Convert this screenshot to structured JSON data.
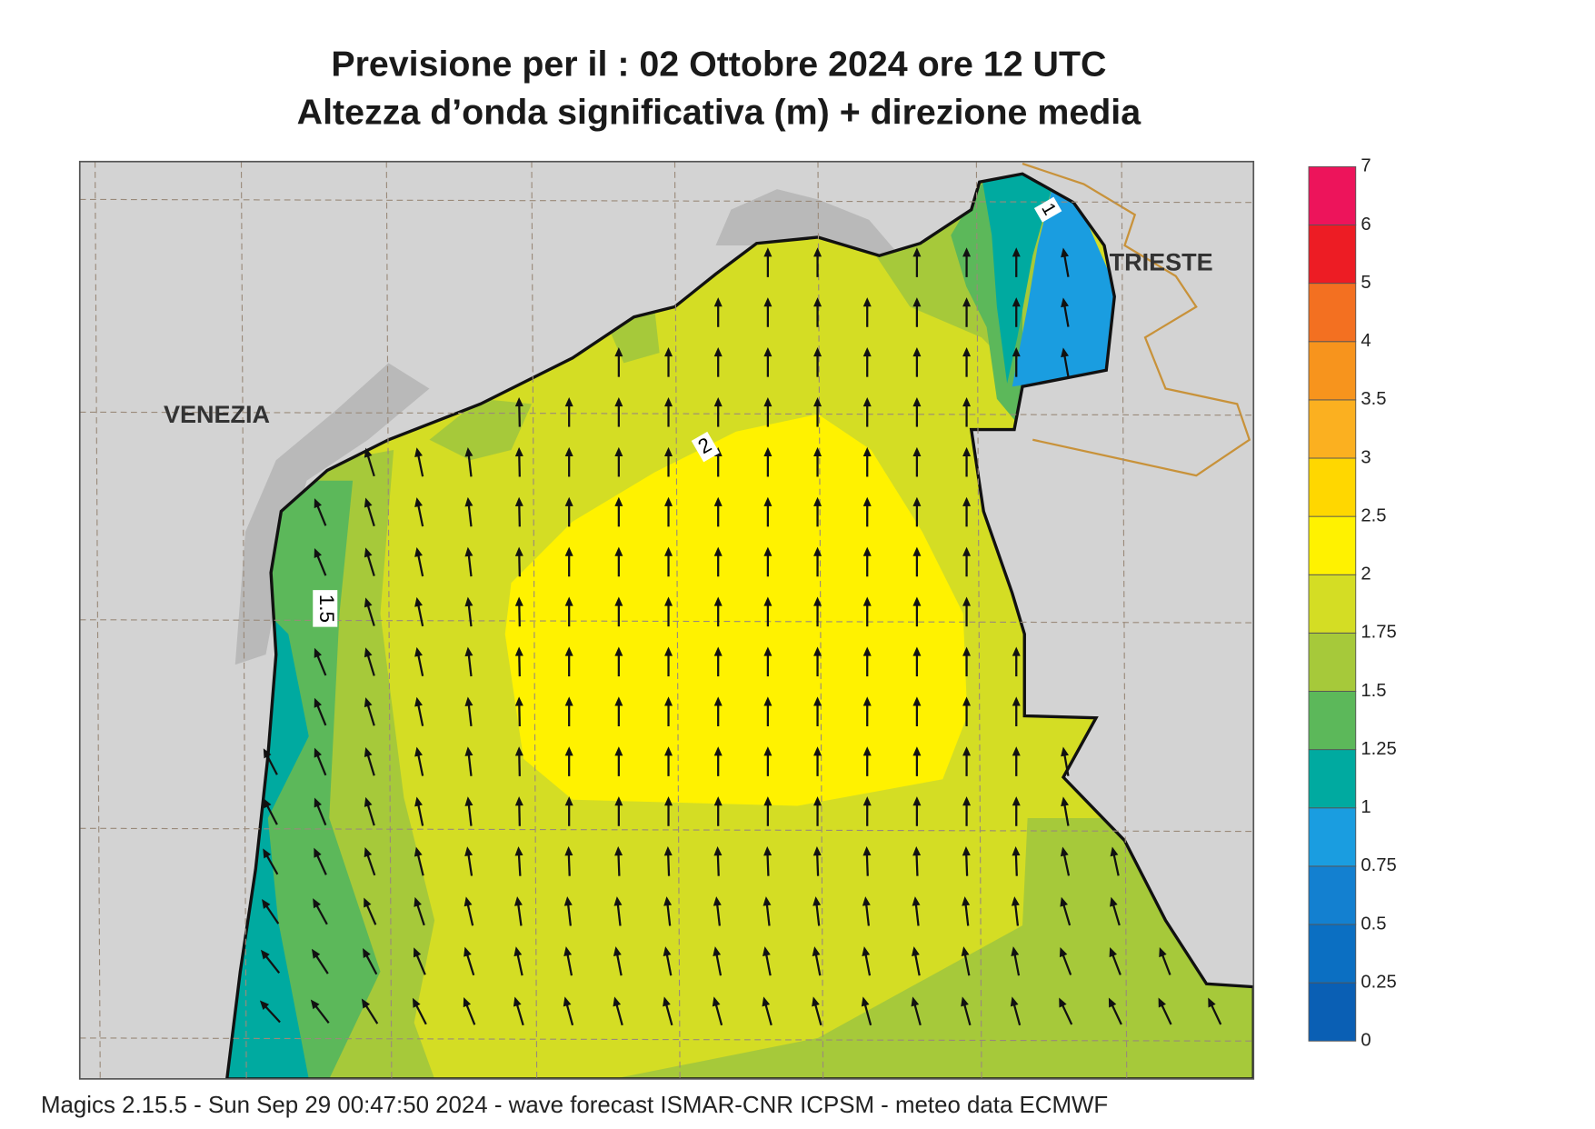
{
  "title": {
    "line1": "Previsione per il  :  02  Ottobre  2024   ore 12 UTC",
    "line2": "Altezza d’onda significativa (m) + direzione media"
  },
  "map": {
    "places": [
      "VENEZIA",
      "TRIESTE"
    ],
    "contour_labels": [
      "2",
      "1.5",
      "1"
    ]
  },
  "colorbar": {
    "levels": [
      0,
      0.25,
      0.5,
      0.75,
      1,
      1.25,
      1.5,
      1.75,
      2,
      2.5,
      3,
      3.5,
      4,
      5,
      6,
      7
    ],
    "colors": [
      "#0a5fb4",
      "#0b6fc2",
      "#1380d0",
      "#1a9de0",
      "#00aaa0",
      "#5cb85a",
      "#a6c93a",
      "#d4dd24",
      "#fff200",
      "#ffd700",
      "#fbb020",
      "#f7941d",
      "#f37021",
      "#ed1c24",
      "#ed145b"
    ]
  },
  "footer": "Magics 2.15.5 - Sun Sep 29 00:47:50 2024 - wave forecast  ISMAR-CNR  ICPSM - meteo data   ECMWF"
}
